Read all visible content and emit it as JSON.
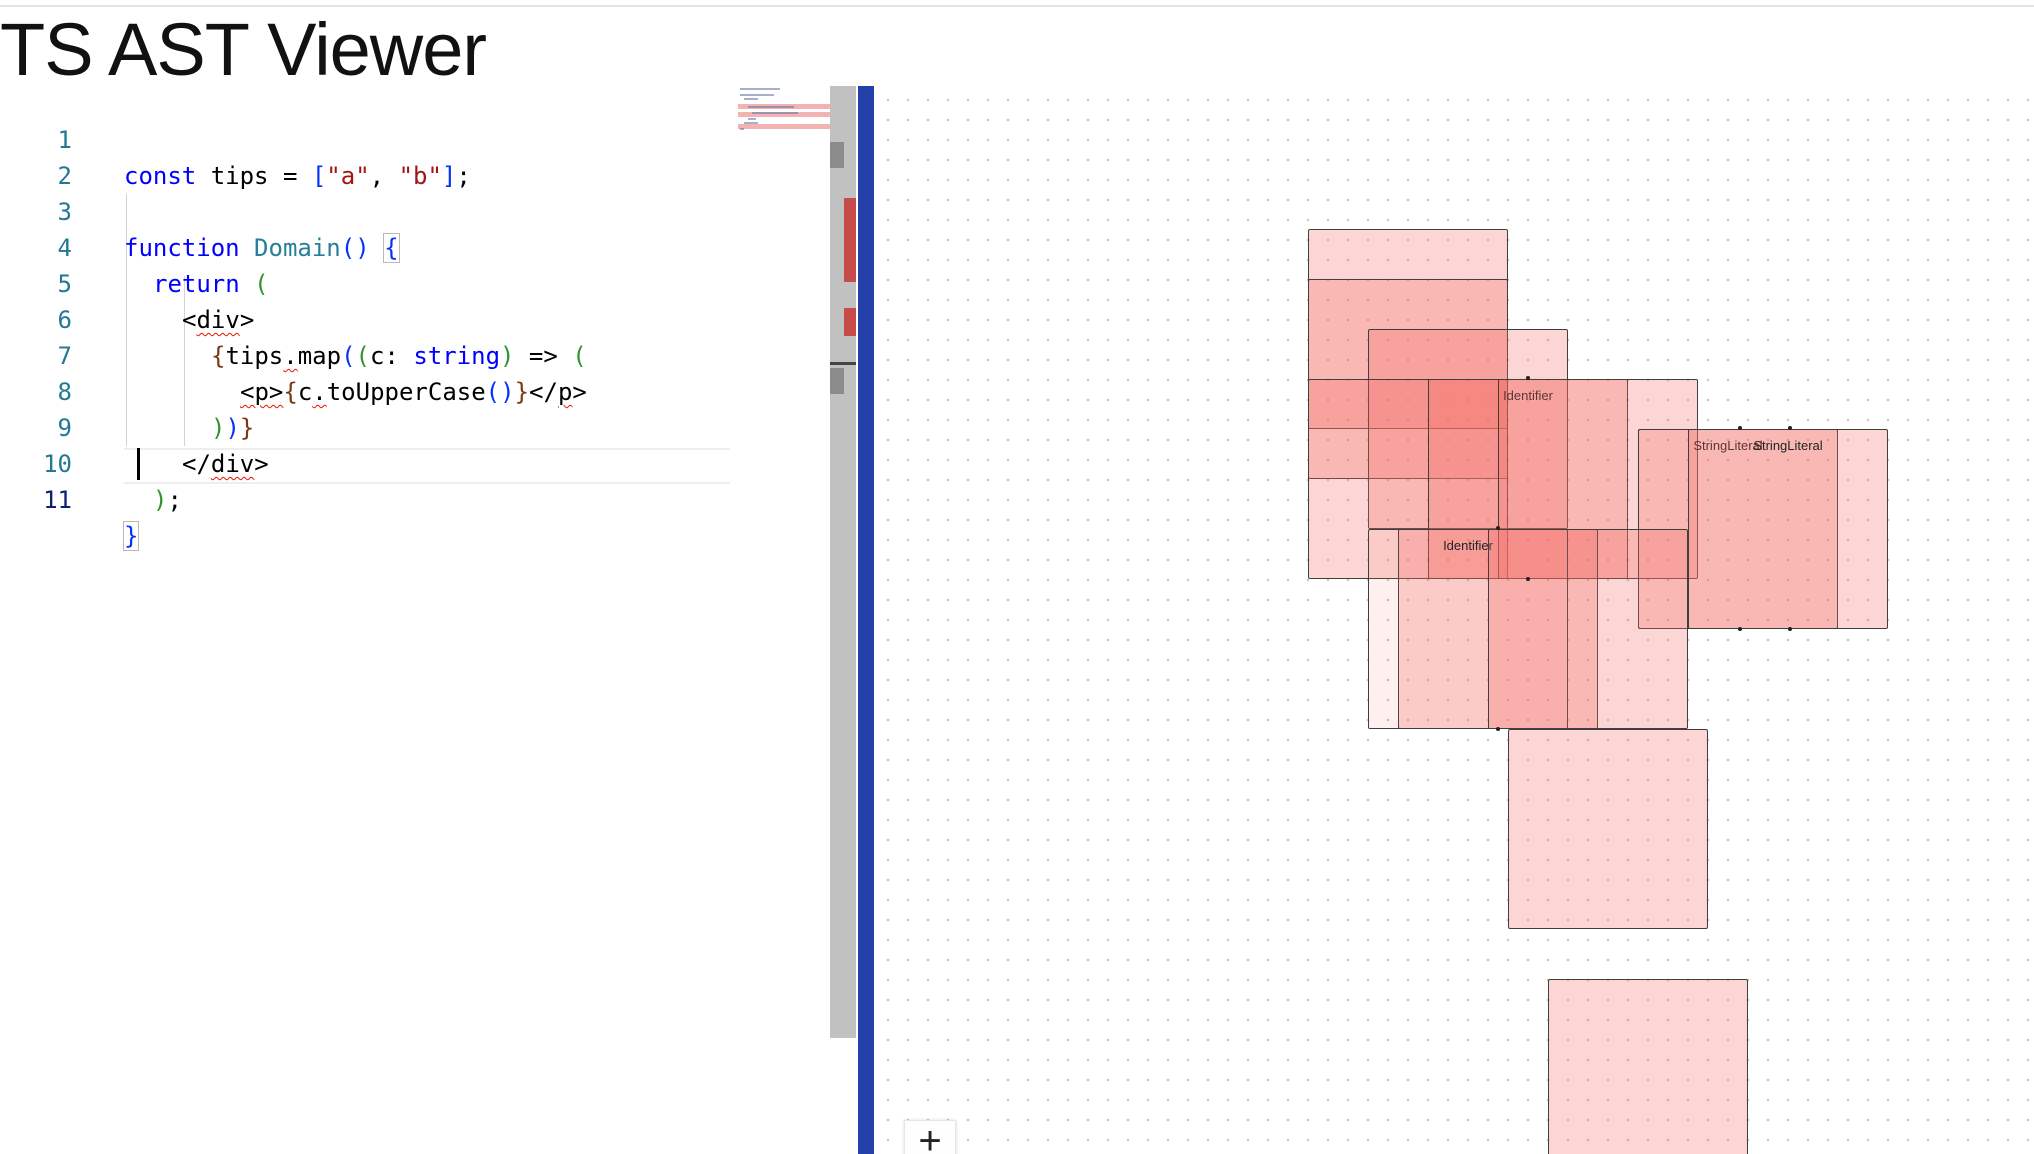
{
  "app": {
    "title": "TS AST Viewer"
  },
  "editor": {
    "lines": [
      {
        "no": "1"
      },
      {
        "no": "2"
      },
      {
        "no": "3"
      },
      {
        "no": "4"
      },
      {
        "no": "5"
      },
      {
        "no": "6"
      },
      {
        "no": "7"
      },
      {
        "no": "8"
      },
      {
        "no": "9"
      },
      {
        "no": "10"
      },
      {
        "no": "11"
      }
    ],
    "tokens": {
      "l1_kw": "const",
      "l1_rest": " tips = ",
      "l1_open": "[",
      "l1_a": "\"a\"",
      "l1_comma": ", ",
      "l1_b": "\"b\"",
      "l1_close": "]",
      "l1_semi": ";",
      "l3_kw": "function",
      "l3_sp": " ",
      "l3_fn": "Domain",
      "l3_parens": "()",
      "l3_sp2": " ",
      "l3_brace": "{",
      "l4_kw": "return",
      "l4_sp": " ",
      "l4_paren": "(",
      "l5_lt": "<",
      "l5_tag": "div",
      "l5_gt": ">",
      "l6_brace": "{",
      "l6_tips": "tips",
      "l6_dot": ".",
      "l6_map": "map",
      "l6_p1": "(",
      "l6_p2": "(",
      "l6_c": "c: ",
      "l6_type": "string",
      "l6_p2c": ")",
      "l6_arrow": " => ",
      "l6_p3": "(",
      "l7_open": "<p>",
      "l7_brace": "{",
      "l7_c": "c",
      "l7_dot": ".",
      "l7_call": "toUpperCase",
      "l7_parens": "()",
      "l7_brace_close": "}",
      "l7_close_a": "</",
      "l7_close_p": "p",
      "l7_close_gt": ">",
      "l8_p3": ")",
      "l8_p1": ")",
      "l8_brace": "}",
      "l9_lt": "</",
      "l9_tag": "div",
      "l9_gt": ">",
      "l10_paren": ")",
      "l10_semi": ";",
      "l11_brace": "}"
    }
  },
  "graph": {
    "nodes": [
      {
        "label": ""
      },
      {
        "label": ""
      },
      {
        "label": ""
      },
      {
        "label": ""
      },
      {
        "label": "Identifier"
      },
      {
        "label": ""
      },
      {
        "label": ""
      },
      {
        "label": "StringLiteral"
      },
      {
        "label": "StringLiteral"
      },
      {
        "label": ""
      },
      {
        "label": "Identifier"
      },
      {
        "label": ""
      },
      {
        "label": ""
      },
      {
        "label": ""
      }
    ],
    "zoom_in_label": "+"
  }
}
